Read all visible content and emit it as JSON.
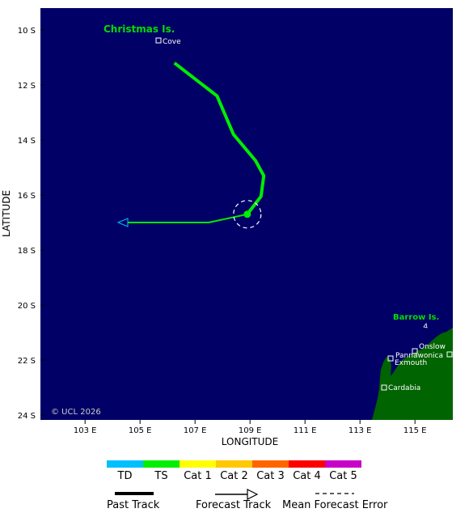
{
  "map": {
    "axis": {
      "x_title": "LONGITUDE",
      "y_title": "LATITUDE",
      "lat_ticks": [
        "10 S",
        "12 S",
        "14 S",
        "16 S",
        "18 S",
        "20 S",
        "22 S",
        "24 S"
      ],
      "lon_ticks": [
        "103 E",
        "105 E",
        "107 E",
        "109 E",
        "111 E",
        "113 E",
        "115 E"
      ]
    },
    "islands": {
      "christmas": "Christmas Is.",
      "barrow": "Barrow Is."
    },
    "places": [
      "Cove",
      "Onslow",
      "Pannawonica",
      "Exmouth",
      "Cardabia"
    ],
    "copyright": "© UCL 2026",
    "colors": {
      "ocean": "#000066",
      "land": "#006400",
      "track": "#00ff00"
    }
  },
  "chart_data": {
    "type": "line",
    "x_unit": "deg E",
    "y_unit": "deg S",
    "lon_range": [
      101.5,
      116.5
    ],
    "lat_range": [
      9.5,
      24.2
    ],
    "past_track": [
      {
        "lon": 106.25,
        "lat": 11.2
      },
      {
        "lon": 107.8,
        "lat": 12.4
      },
      {
        "lon": 108.4,
        "lat": 13.8
      },
      {
        "lon": 109.2,
        "lat": 14.75
      },
      {
        "lon": 109.5,
        "lat": 15.3
      },
      {
        "lon": 109.4,
        "lat": 16.05
      },
      {
        "lon": 108.9,
        "lat": 16.7
      }
    ],
    "forecast_track": [
      {
        "lon": 108.9,
        "lat": 16.7
      },
      {
        "lon": 107.5,
        "lat": 17.0
      },
      {
        "lon": 104.2,
        "lat": 17.0
      }
    ],
    "current_position": {
      "lon": 108.9,
      "lat": 16.7
    },
    "mean_forecast_error_deg": 0.5
  },
  "legend": {
    "categories": [
      {
        "label": "TD",
        "color": "#00bfff"
      },
      {
        "label": "TS",
        "color": "#00ee00"
      },
      {
        "label": "Cat 1",
        "color": "#ffff00"
      },
      {
        "label": "Cat 2",
        "color": "#ffc800"
      },
      {
        "label": "Cat 3",
        "color": "#ff6400"
      },
      {
        "label": "Cat 4",
        "color": "#ff0000"
      },
      {
        "label": "Cat 5",
        "color": "#c800c8"
      }
    ],
    "past_track": "Past Track",
    "forecast_track": "Forecast Track",
    "mean_error": "Mean Forecast Error"
  }
}
